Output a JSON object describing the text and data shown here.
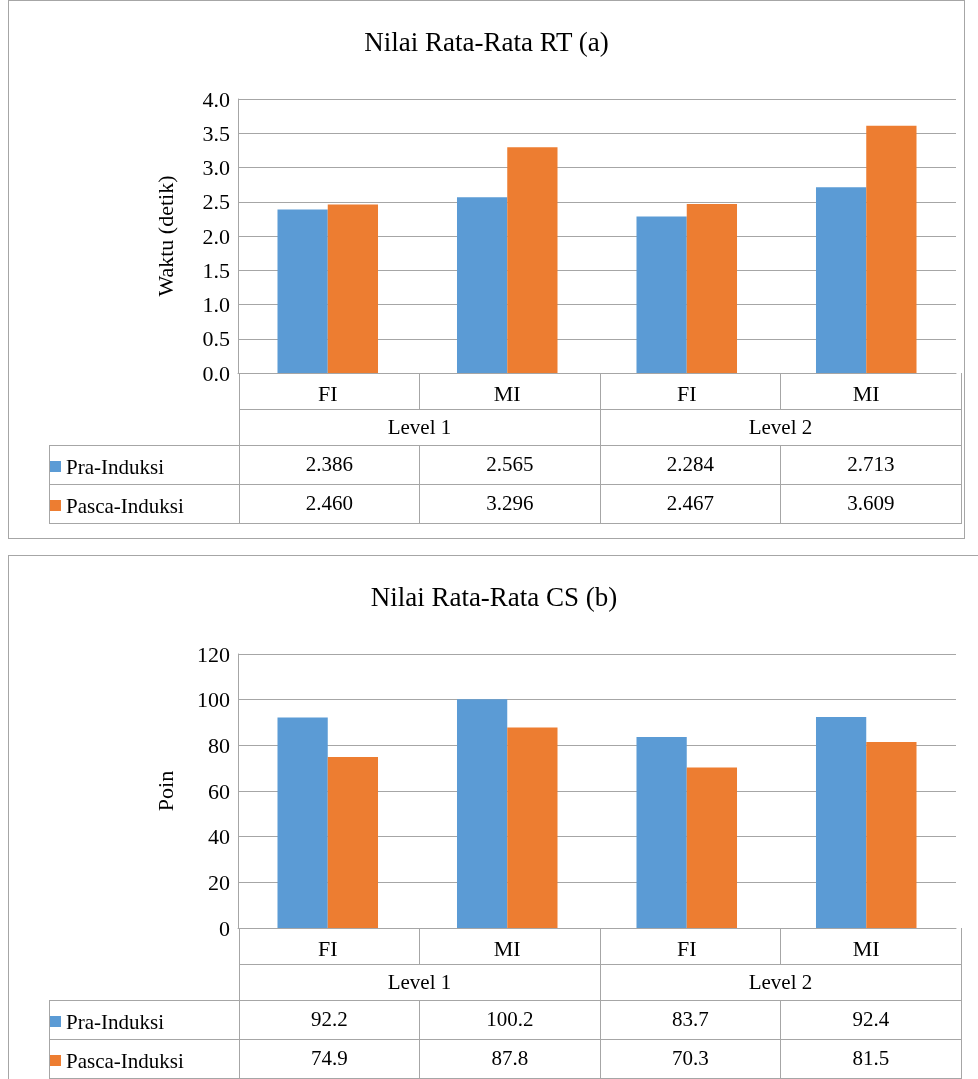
{
  "chart_data": [
    {
      "type": "bar",
      "title": "Nilai Rata-Rata RT (a)",
      "ylabel": "Waktu (detik)",
      "categories": [
        "FI",
        "MI",
        "FI",
        "MI"
      ],
      "annotations": [
        "Level 1",
        "Level 2"
      ],
      "series": [
        {
          "name": "Pra-Induksi",
          "color": "#5b9bd5",
          "values": [
            2.386,
            2.565,
            2.284,
            2.713
          ],
          "value_labels": [
            "2.386",
            "2.565",
            "2.284",
            "2.713"
          ]
        },
        {
          "name": "Pasca-Induksi",
          "color": "#ed7d31",
          "values": [
            2.46,
            3.296,
            2.467,
            3.609
          ],
          "value_labels": [
            "2.460",
            "3.296",
            "2.467",
            "3.609"
          ]
        }
      ],
      "ylim": [
        0,
        4
      ],
      "yticks": [
        {
          "value": 0,
          "label": "0.0"
        },
        {
          "value": 0.5,
          "label": "0.5"
        },
        {
          "value": 1,
          "label": "1.0"
        },
        {
          "value": 1.5,
          "label": "1.5"
        },
        {
          "value": 2,
          "label": "2.0"
        },
        {
          "value": 2.5,
          "label": "2.5"
        },
        {
          "value": 3,
          "label": "3.0"
        },
        {
          "value": 3.5,
          "label": "3.5"
        },
        {
          "value": 4,
          "label": "4.0"
        }
      ],
      "grid": "y",
      "legend": "bottom"
    },
    {
      "type": "bar",
      "title": "Nilai Rata-Rata CS (b)",
      "ylabel": "Poin",
      "categories": [
        "FI",
        "MI",
        "FI",
        "MI"
      ],
      "annotations": [
        "Level 1",
        "Level 2"
      ],
      "series": [
        {
          "name": "Pra-Induksi",
          "color": "#5b9bd5",
          "values": [
            92.2,
            100.2,
            83.7,
            92.4
          ],
          "value_labels": [
            "92.2",
            "100.2",
            "83.7",
            "92.4"
          ]
        },
        {
          "name": "Pasca-Induksi",
          "color": "#ed7d31",
          "values": [
            74.9,
            87.8,
            70.3,
            81.5
          ],
          "value_labels": [
            "74.9",
            "87.8",
            "70.3",
            "81.5"
          ]
        }
      ],
      "ylim": [
        0,
        120
      ],
      "yticks": [
        0,
        20,
        40,
        60,
        80,
        100,
        120
      ],
      "grid": "y",
      "legend": "bottom"
    }
  ]
}
